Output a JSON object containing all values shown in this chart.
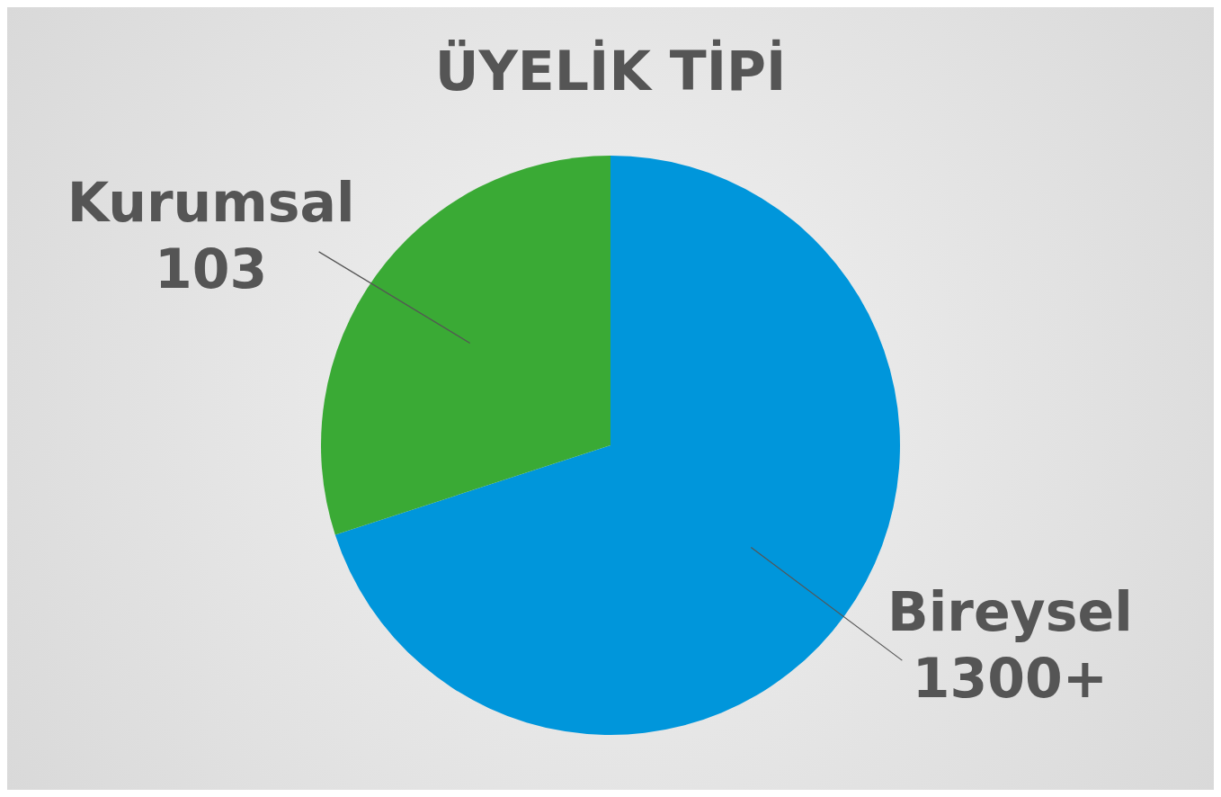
{
  "chart_data": {
    "type": "pie",
    "title": "ÜYELİK TİPİ",
    "categories": [
      "Bireysel",
      "Kurumsal"
    ],
    "values": [
      70,
      30
    ],
    "annotations": [
      "1300+",
      "103"
    ],
    "colors": [
      "#0096db",
      "#3aaa35"
    ],
    "legend": false
  }
}
